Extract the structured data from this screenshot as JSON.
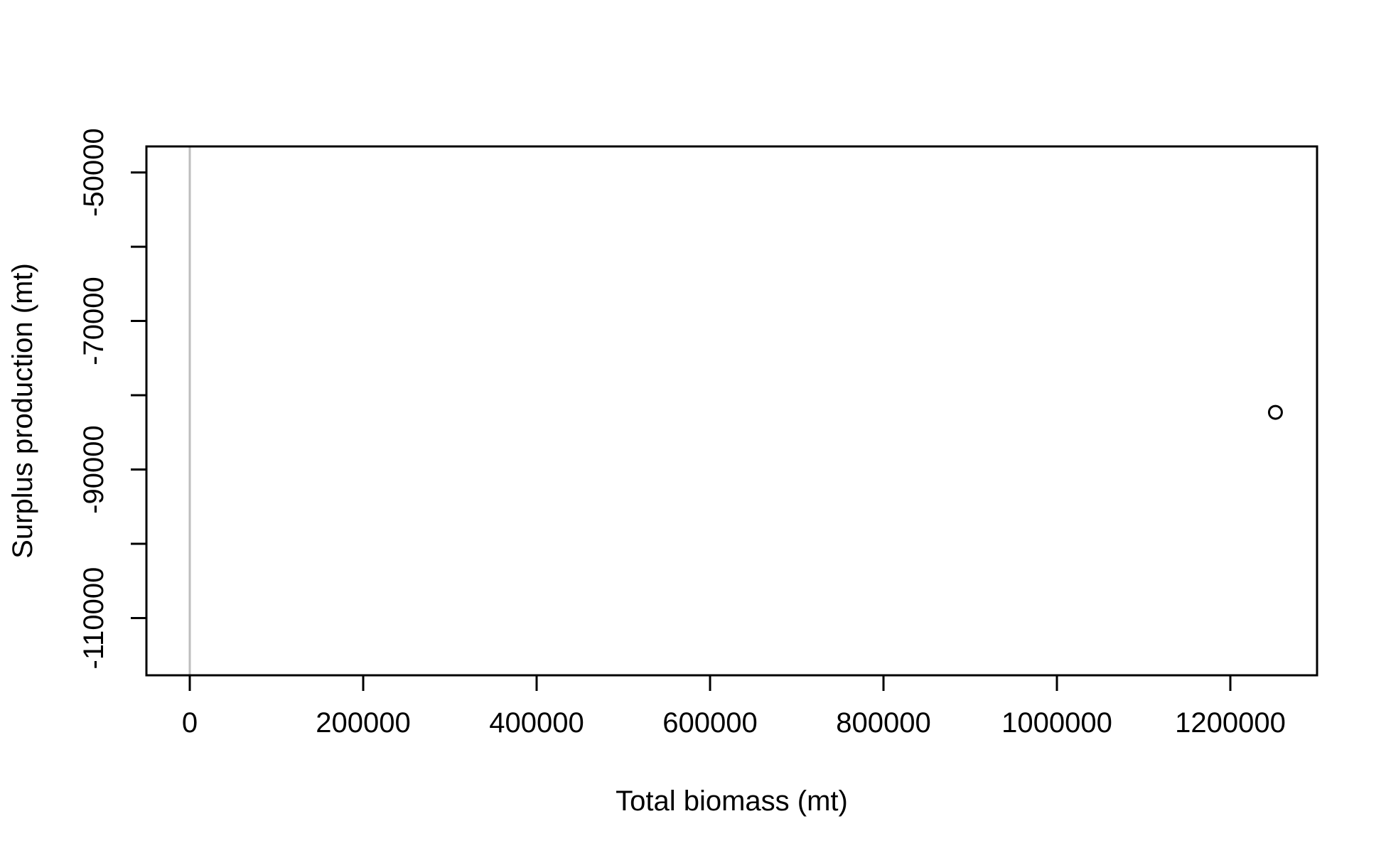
{
  "chart_data": {
    "type": "scatter",
    "title": "",
    "xlabel": "Total biomass (mt)",
    "ylabel": "Surplus production (mt)",
    "xlim": [
      -50000,
      1300000
    ],
    "ylim": [
      -117700,
      -46500
    ],
    "x_ticks": [
      0,
      200000,
      400000,
      600000,
      800000,
      1000000,
      1200000
    ],
    "x_tick_labels": [
      "0",
      "200000",
      "400000",
      "600000",
      "800000",
      "1000000",
      "1200000"
    ],
    "y_ticks": [
      -110000,
      -100000,
      -90000,
      -80000,
      -70000,
      -60000,
      -50000
    ],
    "y_tick_labels": [
      "-110000",
      "",
      "-90000",
      "",
      "-70000",
      "",
      "-50000"
    ],
    "reference_line": {
      "orientation": "vertical",
      "x": 0,
      "color": "#bdbdbd"
    },
    "grid": false,
    "legend": "none",
    "series": [
      {
        "x": [
          1252000
        ],
        "y": [
          -82300
        ],
        "marker": "open-circle",
        "color": "#000000"
      }
    ]
  }
}
